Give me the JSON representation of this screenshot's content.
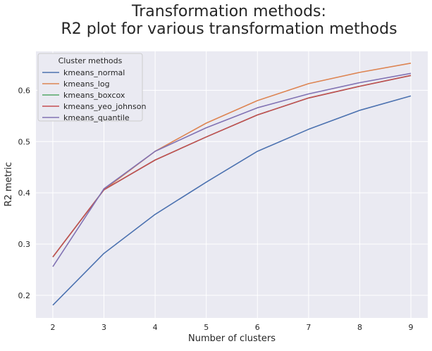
{
  "chart_data": {
    "type": "line",
    "title": "Transformation methods:",
    "subtitle": "R2 plot for various transformation methods",
    "xlabel": "Number of clusters",
    "ylabel": "R2 metric",
    "x": [
      2,
      3,
      4,
      5,
      6,
      7,
      8,
      9
    ],
    "xlim": [
      1.67,
      9.33
    ],
    "ylim": [
      0.156,
      0.676
    ],
    "xticks": [
      2,
      3,
      4,
      5,
      6,
      7,
      8,
      9
    ],
    "yticks": [
      0.2,
      0.3,
      0.4,
      0.5,
      0.6
    ],
    "ytick_labels": [
      "0.2",
      "0.3",
      "0.4",
      "0.5",
      "0.6"
    ],
    "grid": true,
    "legend": {
      "title": "Cluster methods",
      "placement": "top-left"
    },
    "series": [
      {
        "name": "kmeans_normal",
        "color": "#4c72b0",
        "values": [
          0.181,
          0.282,
          0.358,
          0.421,
          0.481,
          0.524,
          0.561,
          0.589
        ]
      },
      {
        "name": "kmeans_log",
        "color": "#dd8452",
        "values": [
          0.275,
          0.406,
          0.481,
          0.536,
          0.58,
          0.613,
          0.635,
          0.653
        ]
      },
      {
        "name": "kmeans_boxcox",
        "color": "#55a868",
        "values": [
          0.275,
          0.406,
          0.464,
          0.509,
          0.552,
          0.585,
          0.608,
          0.629
        ]
      },
      {
        "name": "kmeans_yeo_johnson",
        "color": "#c44e52",
        "values": [
          0.275,
          0.406,
          0.464,
          0.509,
          0.552,
          0.585,
          0.608,
          0.629
        ]
      },
      {
        "name": "kmeans_quantile",
        "color": "#8172b3",
        "values": [
          0.256,
          0.408,
          0.481,
          0.527,
          0.566,
          0.593,
          0.615,
          0.633
        ]
      }
    ]
  }
}
